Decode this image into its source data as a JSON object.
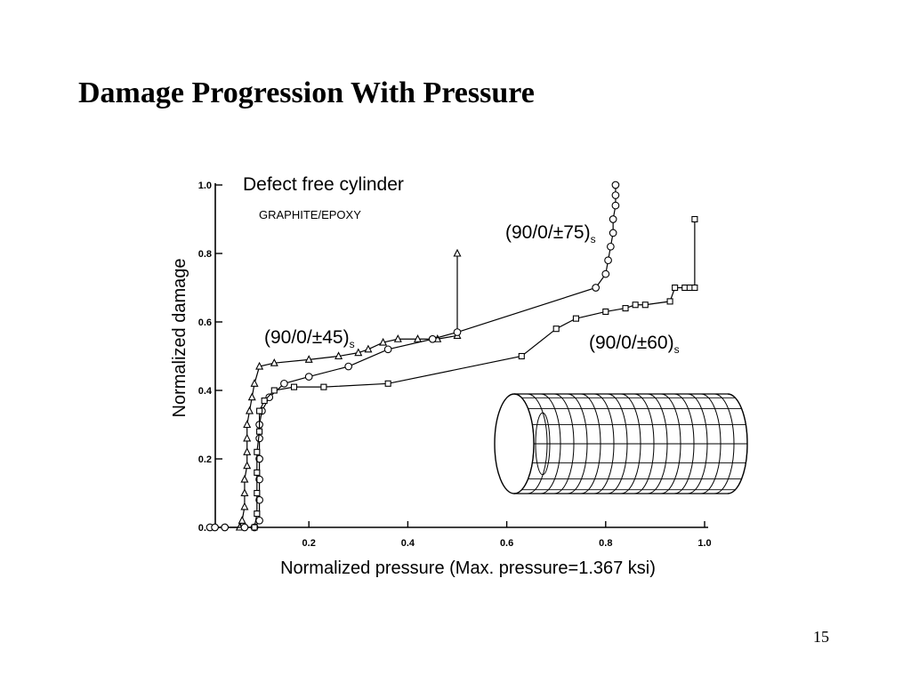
{
  "slide": {
    "title": "Damage Progression With Pressure",
    "page_number": "15"
  },
  "chart_data": {
    "type": "line",
    "title": "Defect free cylinder",
    "subtitle": "GRAPHITE/EPOXY",
    "xlabel": "Normalized pressure (Max. pressure=1.367 ksi)",
    "ylabel": "Normalized damage",
    "xlim": [
      0,
      1.0
    ],
    "ylim": [
      0,
      1.0
    ],
    "xticks": [
      0.2,
      0.4,
      0.6,
      0.8,
      1.0
    ],
    "xtick_labels": [
      "0.2",
      "0.4",
      "0.6",
      "0.8",
      "1.0"
    ],
    "yticks": [
      0.0,
      0.2,
      0.4,
      0.6,
      0.8,
      1.0
    ],
    "ytick_labels": [
      "0.0",
      "0.2",
      "0.4",
      "0.6",
      "0.8",
      "1.0"
    ],
    "grid": false,
    "series": [
      {
        "name": "(90/0/±45)s",
        "label_main": "(90/0/±45)",
        "label_sub": "s",
        "marker": "triangle",
        "points": [
          [
            0.06,
            0.0
          ],
          [
            0.065,
            0.02
          ],
          [
            0.07,
            0.06
          ],
          [
            0.07,
            0.1
          ],
          [
            0.07,
            0.14
          ],
          [
            0.075,
            0.18
          ],
          [
            0.075,
            0.22
          ],
          [
            0.075,
            0.26
          ],
          [
            0.075,
            0.3
          ],
          [
            0.08,
            0.34
          ],
          [
            0.085,
            0.38
          ],
          [
            0.09,
            0.42
          ],
          [
            0.1,
            0.47
          ],
          [
            0.13,
            0.48
          ],
          [
            0.2,
            0.49
          ],
          [
            0.26,
            0.5
          ],
          [
            0.3,
            0.51
          ],
          [
            0.32,
            0.52
          ],
          [
            0.35,
            0.54
          ],
          [
            0.38,
            0.55
          ],
          [
            0.42,
            0.55
          ],
          [
            0.46,
            0.55
          ],
          [
            0.5,
            0.56
          ],
          [
            0.5,
            0.8
          ]
        ]
      },
      {
        "name": "(90/0/±75)s",
        "label_main": "(90/0/±75)",
        "label_sub": "s",
        "marker": "circle",
        "points": [
          [
            0.0,
            0.0
          ],
          [
            0.01,
            0.0
          ],
          [
            0.03,
            0.0
          ],
          [
            0.07,
            0.0
          ],
          [
            0.09,
            0.0
          ],
          [
            0.1,
            0.02
          ],
          [
            0.1,
            0.08
          ],
          [
            0.1,
            0.14
          ],
          [
            0.1,
            0.2
          ],
          [
            0.1,
            0.26
          ],
          [
            0.1,
            0.3
          ],
          [
            0.105,
            0.34
          ],
          [
            0.12,
            0.38
          ],
          [
            0.15,
            0.42
          ],
          [
            0.2,
            0.44
          ],
          [
            0.28,
            0.47
          ],
          [
            0.36,
            0.52
          ],
          [
            0.45,
            0.55
          ],
          [
            0.5,
            0.57
          ],
          [
            0.78,
            0.7
          ],
          [
            0.8,
            0.74
          ],
          [
            0.805,
            0.78
          ],
          [
            0.81,
            0.82
          ],
          [
            0.815,
            0.86
          ],
          [
            0.815,
            0.9
          ],
          [
            0.82,
            0.94
          ],
          [
            0.82,
            0.97
          ],
          [
            0.82,
            1.0
          ]
        ]
      },
      {
        "name": "(90/0/±60)s",
        "label_main": "(90/0/±60)",
        "label_sub": "s",
        "marker": "square",
        "points": [
          [
            0.09,
            0.0
          ],
          [
            0.095,
            0.04
          ],
          [
            0.095,
            0.1
          ],
          [
            0.095,
            0.16
          ],
          [
            0.095,
            0.22
          ],
          [
            0.1,
            0.28
          ],
          [
            0.1,
            0.34
          ],
          [
            0.11,
            0.37
          ],
          [
            0.13,
            0.4
          ],
          [
            0.17,
            0.41
          ],
          [
            0.23,
            0.41
          ],
          [
            0.36,
            0.42
          ],
          [
            0.63,
            0.5
          ],
          [
            0.7,
            0.58
          ],
          [
            0.74,
            0.61
          ],
          [
            0.8,
            0.63
          ],
          [
            0.84,
            0.64
          ],
          [
            0.86,
            0.65
          ],
          [
            0.88,
            0.65
          ],
          [
            0.93,
            0.66
          ],
          [
            0.94,
            0.7
          ],
          [
            0.96,
            0.7
          ],
          [
            0.97,
            0.7
          ],
          [
            0.98,
            0.7
          ],
          [
            0.98,
            0.9
          ]
        ]
      }
    ],
    "inset": "cylinder-mesh-illustration"
  }
}
